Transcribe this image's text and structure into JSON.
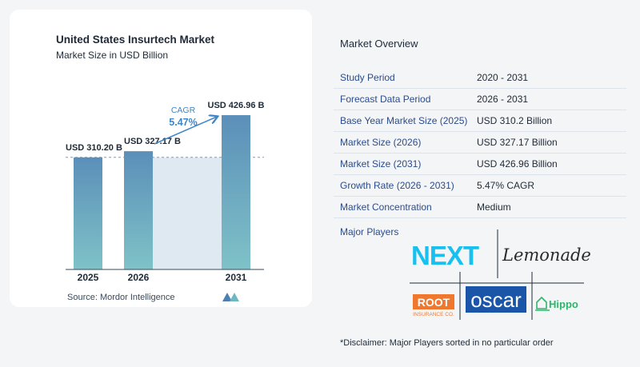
{
  "chart_data": {
    "type": "bar",
    "title": "United States Insurtech Market",
    "subtitle": "Market Size in USD Billion",
    "categories": [
      "2025",
      "2026",
      "2031"
    ],
    "values": [
      310.2,
      327.17,
      426.96
    ],
    "value_labels": [
      "USD 310.20 B",
      "USD 327.17 B",
      "USD 426.96 B"
    ],
    "cagr_label": "CAGR",
    "cagr_value": "5.47%",
    "colors": {
      "bar_top": "#5b8fb9",
      "bar_bottom": "#7fc2c7",
      "band": "#dfe9f2",
      "accent": "#3f86c6"
    }
  },
  "source": "Source:  Mordor Intelligence",
  "overview": {
    "title": "Market Overview",
    "rows": [
      {
        "label": "Study Period",
        "value": "2020 - 2031"
      },
      {
        "label": "Forecast Data Period",
        "value": "2026 - 2031"
      },
      {
        "label": "Base Year Market Size (2025)",
        "value": "USD 310.2 Billion"
      },
      {
        "label": "Market Size (2026)",
        "value": "USD 327.17 Billion"
      },
      {
        "label": "Market Size (2031)",
        "value": "USD 426.96 Billion"
      },
      {
        "label": "Growth Rate (2026 - 2031)",
        "value": "5.47% CAGR"
      },
      {
        "label": "Market Concentration",
        "value": "Medium"
      }
    ]
  },
  "players": {
    "title": "Major Players",
    "logos": [
      "NEXT",
      "Lemonade",
      "ROOT",
      "INSURANCE CO.",
      "oscar",
      "Hippo"
    ]
  },
  "disclaimer": "*Disclaimer: Major Players sorted in no particular order"
}
